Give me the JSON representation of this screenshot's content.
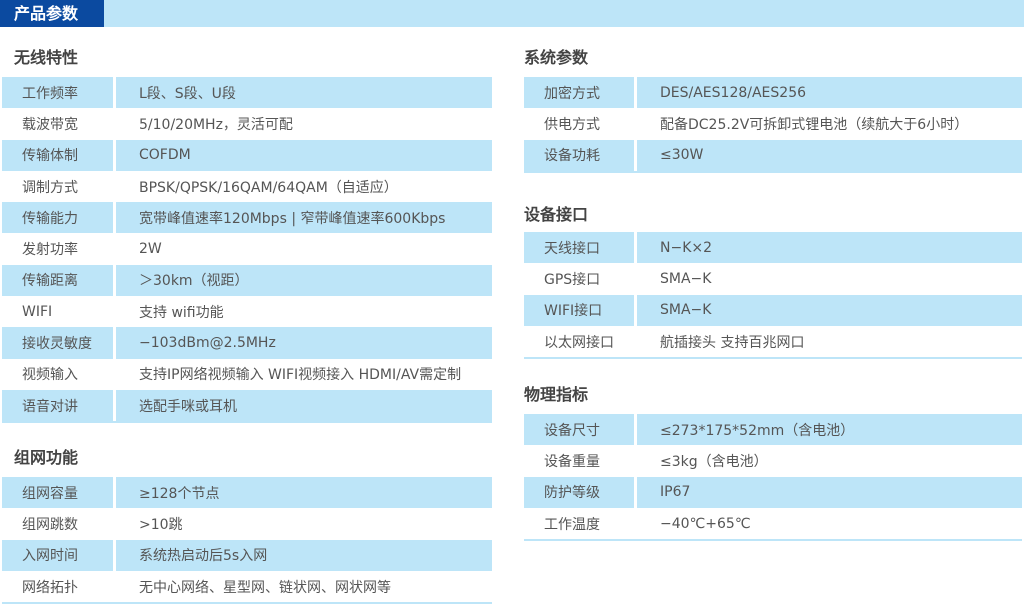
{
  "header": {
    "title": "产品参数"
  },
  "left": [
    {
      "title": "无线特性",
      "rows": [
        [
          "工作频率",
          "L段、S段、U段"
        ],
        [
          "载波带宽",
          "5/10/20MHz，灵活可配"
        ],
        [
          "传输体制",
          "COFDM"
        ],
        [
          "调制方式",
          "BPSK/QPSK/16QAM/64QAM（自适应）"
        ],
        [
          "传输能力",
          "宽带峰值速率120Mbps | 窄带峰值速率600Kbps"
        ],
        [
          "发射功率",
          "2W"
        ],
        [
          "传输距离",
          "＞30km（视距）"
        ],
        [
          "WIFI",
          "支持 wifi功能"
        ],
        [
          "接收灵敏度",
          "−103dBm@2.5MHz"
        ],
        [
          "视频输入",
          "支持IP网络视频输入 WIFI视频接入 HDMI/AV需定制"
        ],
        [
          "语音对讲",
          "选配手咪或耳机"
        ]
      ]
    },
    {
      "title": "组网功能",
      "rows": [
        [
          "组网容量",
          "≥128个节点"
        ],
        [
          "组网跳数",
          ">10跳"
        ],
        [
          "入网时间",
          "系统热启动后5s入网"
        ],
        [
          "网络拓扑",
          "无中心网络、星型网、链状网、网状网等"
        ]
      ]
    }
  ],
  "right": [
    {
      "title": "系统参数",
      "rows": [
        [
          "加密方式",
          "DES/AES128/AES256"
        ],
        [
          "供电方式",
          "配备DC25.2V可拆卸式锂电池（续航大于6小时）"
        ],
        [
          "设备功耗",
          "≤30W"
        ]
      ]
    },
    {
      "title": "设备接口",
      "rows": [
        [
          "天线接口",
          "N−K×2"
        ],
        [
          "GPS接口",
          "SMA−K"
        ],
        [
          "WIFI接口",
          "SMA−K"
        ],
        [
          "以太网接口",
          "航插接头 支持百兆网口"
        ]
      ]
    },
    {
      "title": "物理指标",
      "rows": [
        [
          "设备尺寸",
          "≤273*175*52mm（含电池）"
        ],
        [
          "设备重量",
          "≤3kg（含电池）"
        ],
        [
          "防护等级",
          "IP67"
        ],
        [
          "工作温度",
          "−40℃+65℃"
        ]
      ]
    }
  ]
}
